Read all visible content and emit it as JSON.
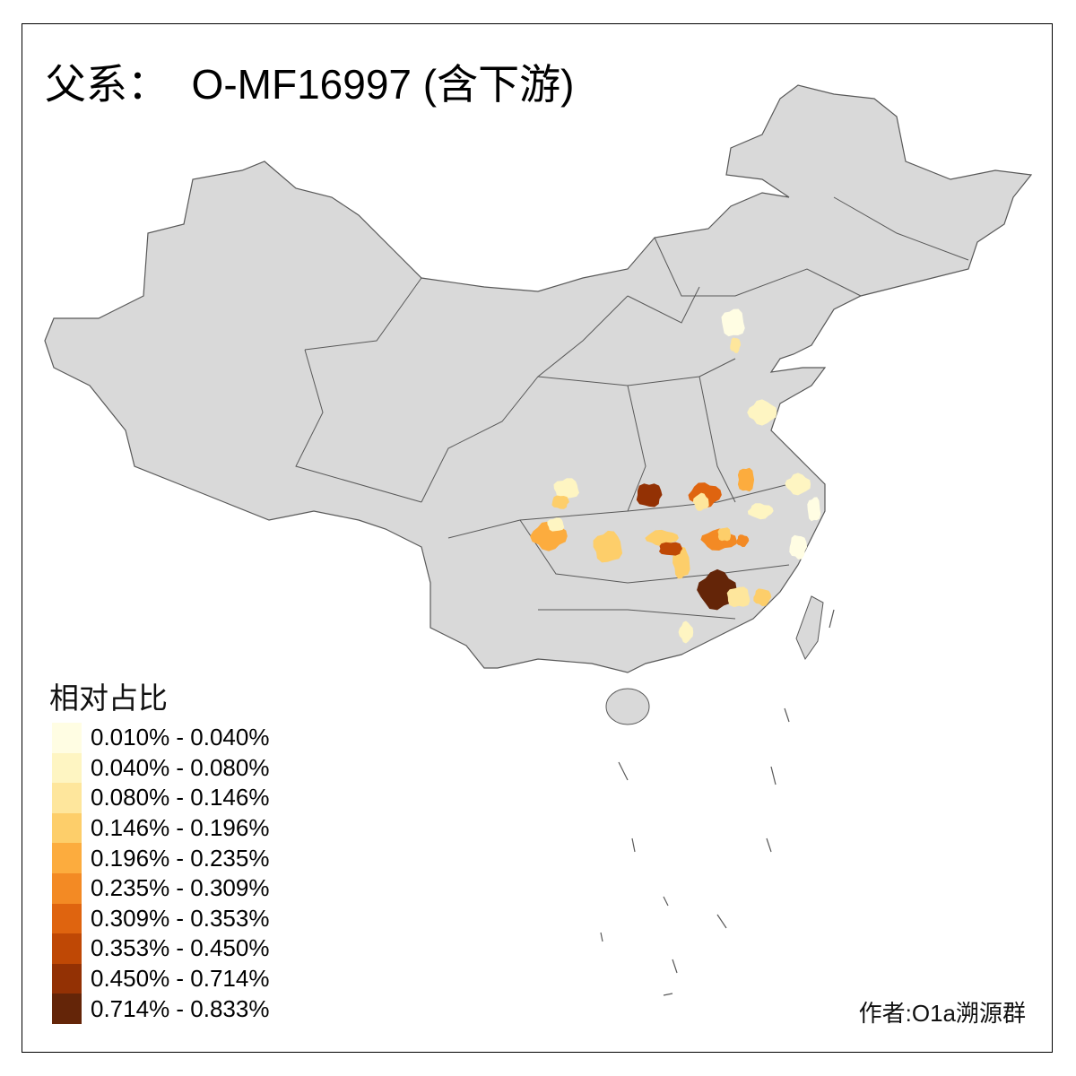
{
  "title": "父系：  O-MF16997 (含下游)",
  "legend": {
    "title": "相对占比",
    "items": [
      {
        "label": "0.010% - 0.040%",
        "color": "#FFFDE3"
      },
      {
        "label": "0.040% - 0.080%",
        "color": "#FEF5C2"
      },
      {
        "label": "0.080% - 0.146%",
        "color": "#FEE69C"
      },
      {
        "label": "0.146% - 0.196%",
        "color": "#FDCE6A"
      },
      {
        "label": "0.196% - 0.235%",
        "color": "#FCAC3E"
      },
      {
        "label": "0.235% - 0.309%",
        "color": "#F38A24"
      },
      {
        "label": "0.309% - 0.353%",
        "color": "#DF640F"
      },
      {
        "label": "0.353% - 0.450%",
        "color": "#BF4805"
      },
      {
        "label": "0.450% - 0.714%",
        "color": "#933104"
      },
      {
        "label": "0.714% - 0.833%",
        "color": "#642508"
      }
    ]
  },
  "map": {
    "base_color": "#D9D9D9",
    "border_color": "#595959",
    "region_classes": [
      0,
      2,
      1,
      1,
      3,
      4,
      3,
      8,
      3,
      3,
      7,
      6,
      2,
      4,
      1,
      5,
      3,
      5,
      9,
      2,
      3,
      1,
      0,
      0,
      1,
      1
    ]
  },
  "credit": "作者:O1a溯源群"
}
